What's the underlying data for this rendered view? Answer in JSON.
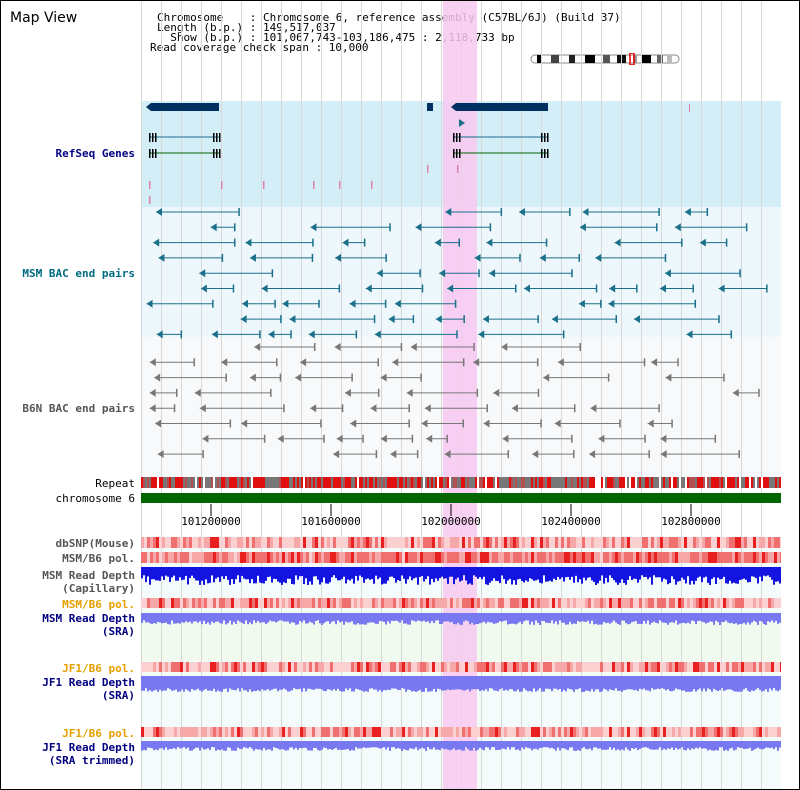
{
  "title": "Map View",
  "info": {
    "line1": "Chromosome    : Chromosome 6, reference assembly (C57BL/6J) (Build 37)",
    "line2": "Length (b.p.) : 149,517,037",
    "line3": "  Show (b.p.) : 101,067,743-103,186,475 : 2,118,733 bp",
    "line4": "Read coverage check span : 10,000"
  },
  "tracks": {
    "refseq": "RefSeq Genes",
    "msm_bac": "MSM BAC end pairs",
    "b6n_bac": "B6N BAC end pairs",
    "repeat": "Repeat",
    "chromosome": "chromosome 6",
    "dbsnp": "dbSNP(Mouse)",
    "msm_b6_pol_1": "MSM/B6 pol.",
    "msm_depth_cap_1": "MSM Read Depth",
    "msm_depth_cap_2": "(Capillary)",
    "msm_b6_pol_2": "MSM/B6 pol.",
    "msm_depth_sra_1": "MSM Read Depth",
    "msm_depth_sra_2": "(SRA)",
    "jf1_b6_pol_1": "JF1/B6 pol.",
    "jf1_depth_sra_1": "JF1 Read Depth",
    "jf1_depth_sra_2": "(SRA)",
    "jf1_b6_pol_2": "JF1/B6 pol.",
    "jf1_depth_trim_1": "JF1 Read Depth",
    "jf1_depth_trim_2": "(SRA trimmed)"
  },
  "axis": {
    "ticks": [
      "101200000",
      "101600000",
      "102000000",
      "102400000",
      "102800000"
    ]
  },
  "colors": {
    "highlight": "#f7c8f0",
    "refseq_bg": "#d4eef8",
    "bac_bg": "#eef8fc",
    "msm_line": "#1a6f8a",
    "b6n_line": "#777777",
    "gene": "#00305f",
    "chromosome": "#006600",
    "depth_dark": "#1414e0",
    "depth_light": "#7878f0"
  }
}
